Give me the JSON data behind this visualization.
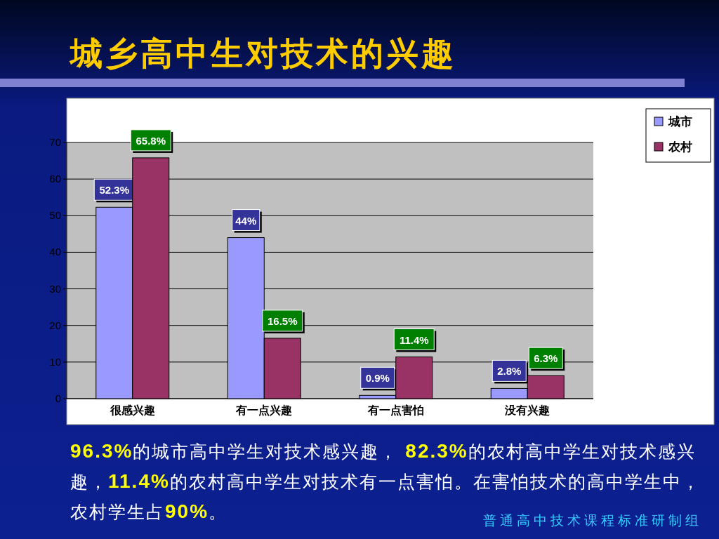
{
  "chart_data": {
    "type": "bar",
    "title": "城乡高中生对技术的兴趣",
    "categories": [
      "很感兴趣",
      "有一点兴趣",
      "有一点害怕",
      "没有兴趣"
    ],
    "series": [
      {
        "name": "城市",
        "color": "#9999ff",
        "values": [
          52.3,
          44,
          0.9,
          2.8
        ],
        "value_labels": [
          "52.3%",
          "44%",
          "0.9%",
          "2.8%"
        ]
      },
      {
        "name": "农村",
        "color": "#993366",
        "values": [
          65.8,
          16.5,
          11.4,
          6.3
        ],
        "value_labels": [
          "65.8%",
          "16.5%",
          "11.4%",
          "6.3%"
        ]
      }
    ],
    "ylim": [
      0,
      70
    ],
    "yticks": [
      0,
      10,
      20,
      30,
      40,
      50,
      60,
      70
    ],
    "grid": "y",
    "legend": "top right",
    "annotations": [
      "96.3%的城市高中学生对技术感兴趣， 82.3%的农村高中学生对技术感兴趣，11.4%的农村高中学生对技术有一点害怕。在害怕技术的高中学生中，农村学生占90%。",
      "普通高中技术课程标准研制组"
    ]
  }
}
